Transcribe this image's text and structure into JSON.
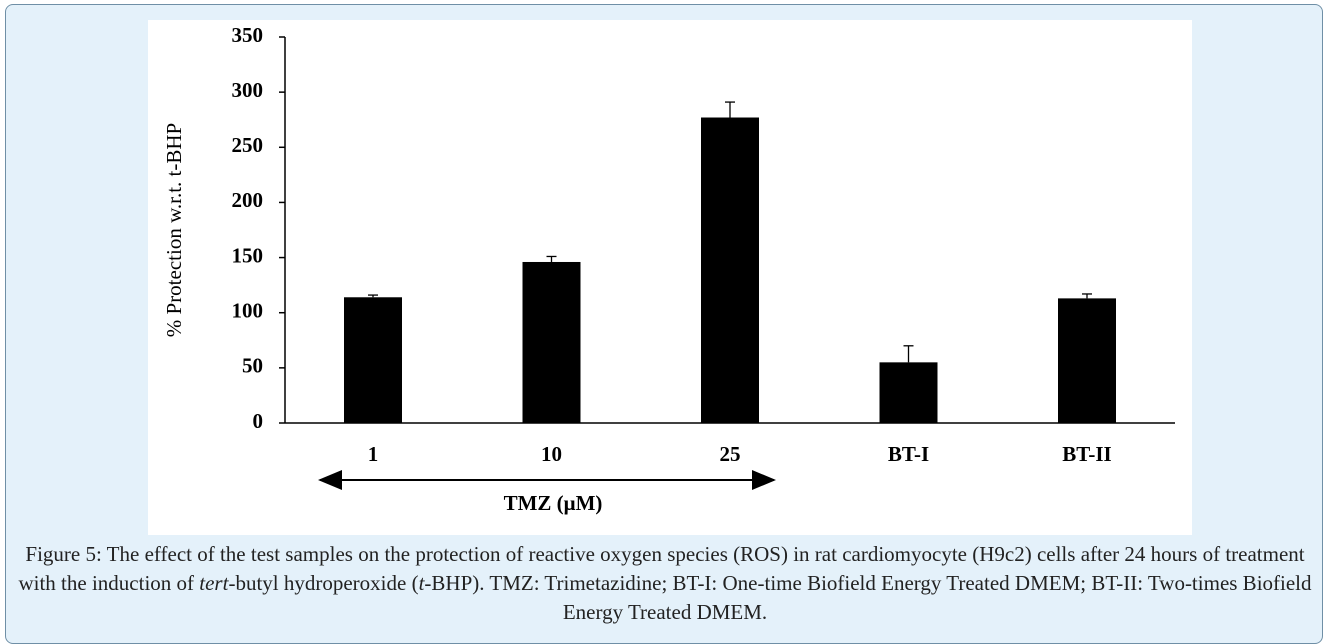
{
  "chart_data": {
    "type": "bar",
    "y_label": "% Protection w.r.t. t-BHP",
    "categories": [
      "1",
      "10",
      "25",
      "BT-I",
      "BT-II"
    ],
    "values": [
      114,
      146,
      277,
      55,
      113
    ],
    "errors": [
      2,
      5,
      14,
      15,
      4
    ],
    "color": "#000000",
    "ylim": [
      0,
      350
    ],
    "yticks": [
      0,
      50,
      100,
      150,
      200,
      250,
      300,
      350
    ],
    "grid": false,
    "annotation": "TMZ (μM)"
  },
  "caption": [
    {
      "text": "Figure 5: The effect of the test samples on the protection of reactive oxygen species (ROS) in rat cardiomyocyte (H9c2) cells after 24 hours of treatment with the induction of ",
      "italic": false
    },
    {
      "text": "tert",
      "italic": true
    },
    {
      "text": "-butyl hydroperoxide (",
      "italic": false
    },
    {
      "text": "t",
      "italic": true
    },
    {
      "text": "-BHP). TMZ: Trimetazidine; BT-I: One-time Biofield Energy Treated DMEM; BT-II: Two-times Biofield Energy Treated DMEM.",
      "italic": false
    }
  ]
}
